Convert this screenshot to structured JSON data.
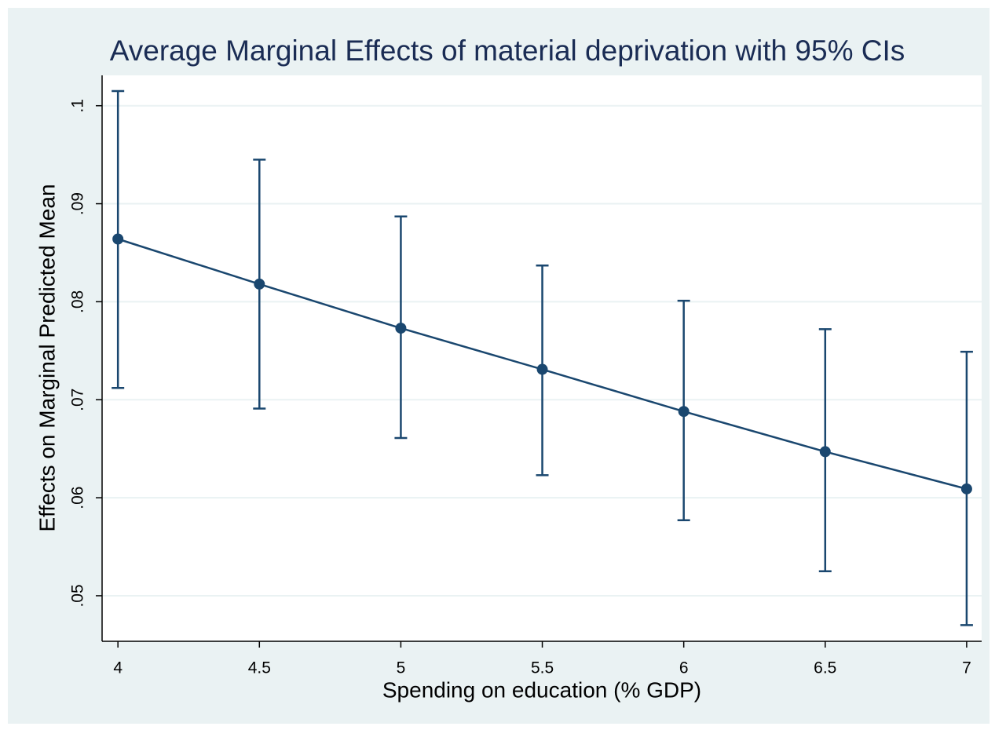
{
  "chart_data": {
    "type": "line",
    "title": "Average Marginal Effects of material deprivation with 95% CIs",
    "x_label": "Spending on education (% GDP)",
    "y_label": "Effects on Marginal Predicted Mean",
    "x": [
      4,
      4.5,
      5,
      5.5,
      6,
      6.5,
      7
    ],
    "series": [
      {
        "color": "#1a476f",
        "values": [
          0.0864,
          0.0818,
          0.0773,
          0.0731,
          0.0688,
          0.0647,
          0.0609
        ],
        "lower": [
          0.0712,
          0.0691,
          0.0661,
          0.0623,
          0.0577,
          0.0525,
          0.047
        ],
        "upper": [
          0.1015,
          0.0945,
          0.0887,
          0.0837,
          0.0801,
          0.0772,
          0.0749
        ]
      }
    ],
    "xlim": [
      3.944,
      7.053
    ],
    "ylim": [
      0.04535,
      0.1031
    ],
    "xticks": [
      4,
      4.5,
      5,
      5.5,
      6,
      6.5,
      7
    ],
    "yticks": [
      {
        "value": 0.05,
        "label": ".05"
      },
      {
        "value": 0.06,
        "label": ".06"
      },
      {
        "value": 0.07,
        "label": ".07"
      },
      {
        "value": 0.08,
        "label": ".08"
      },
      {
        "value": 0.09,
        "label": ".09"
      },
      {
        "value": 0.1,
        "label": ".1"
      }
    ],
    "grid": true
  }
}
